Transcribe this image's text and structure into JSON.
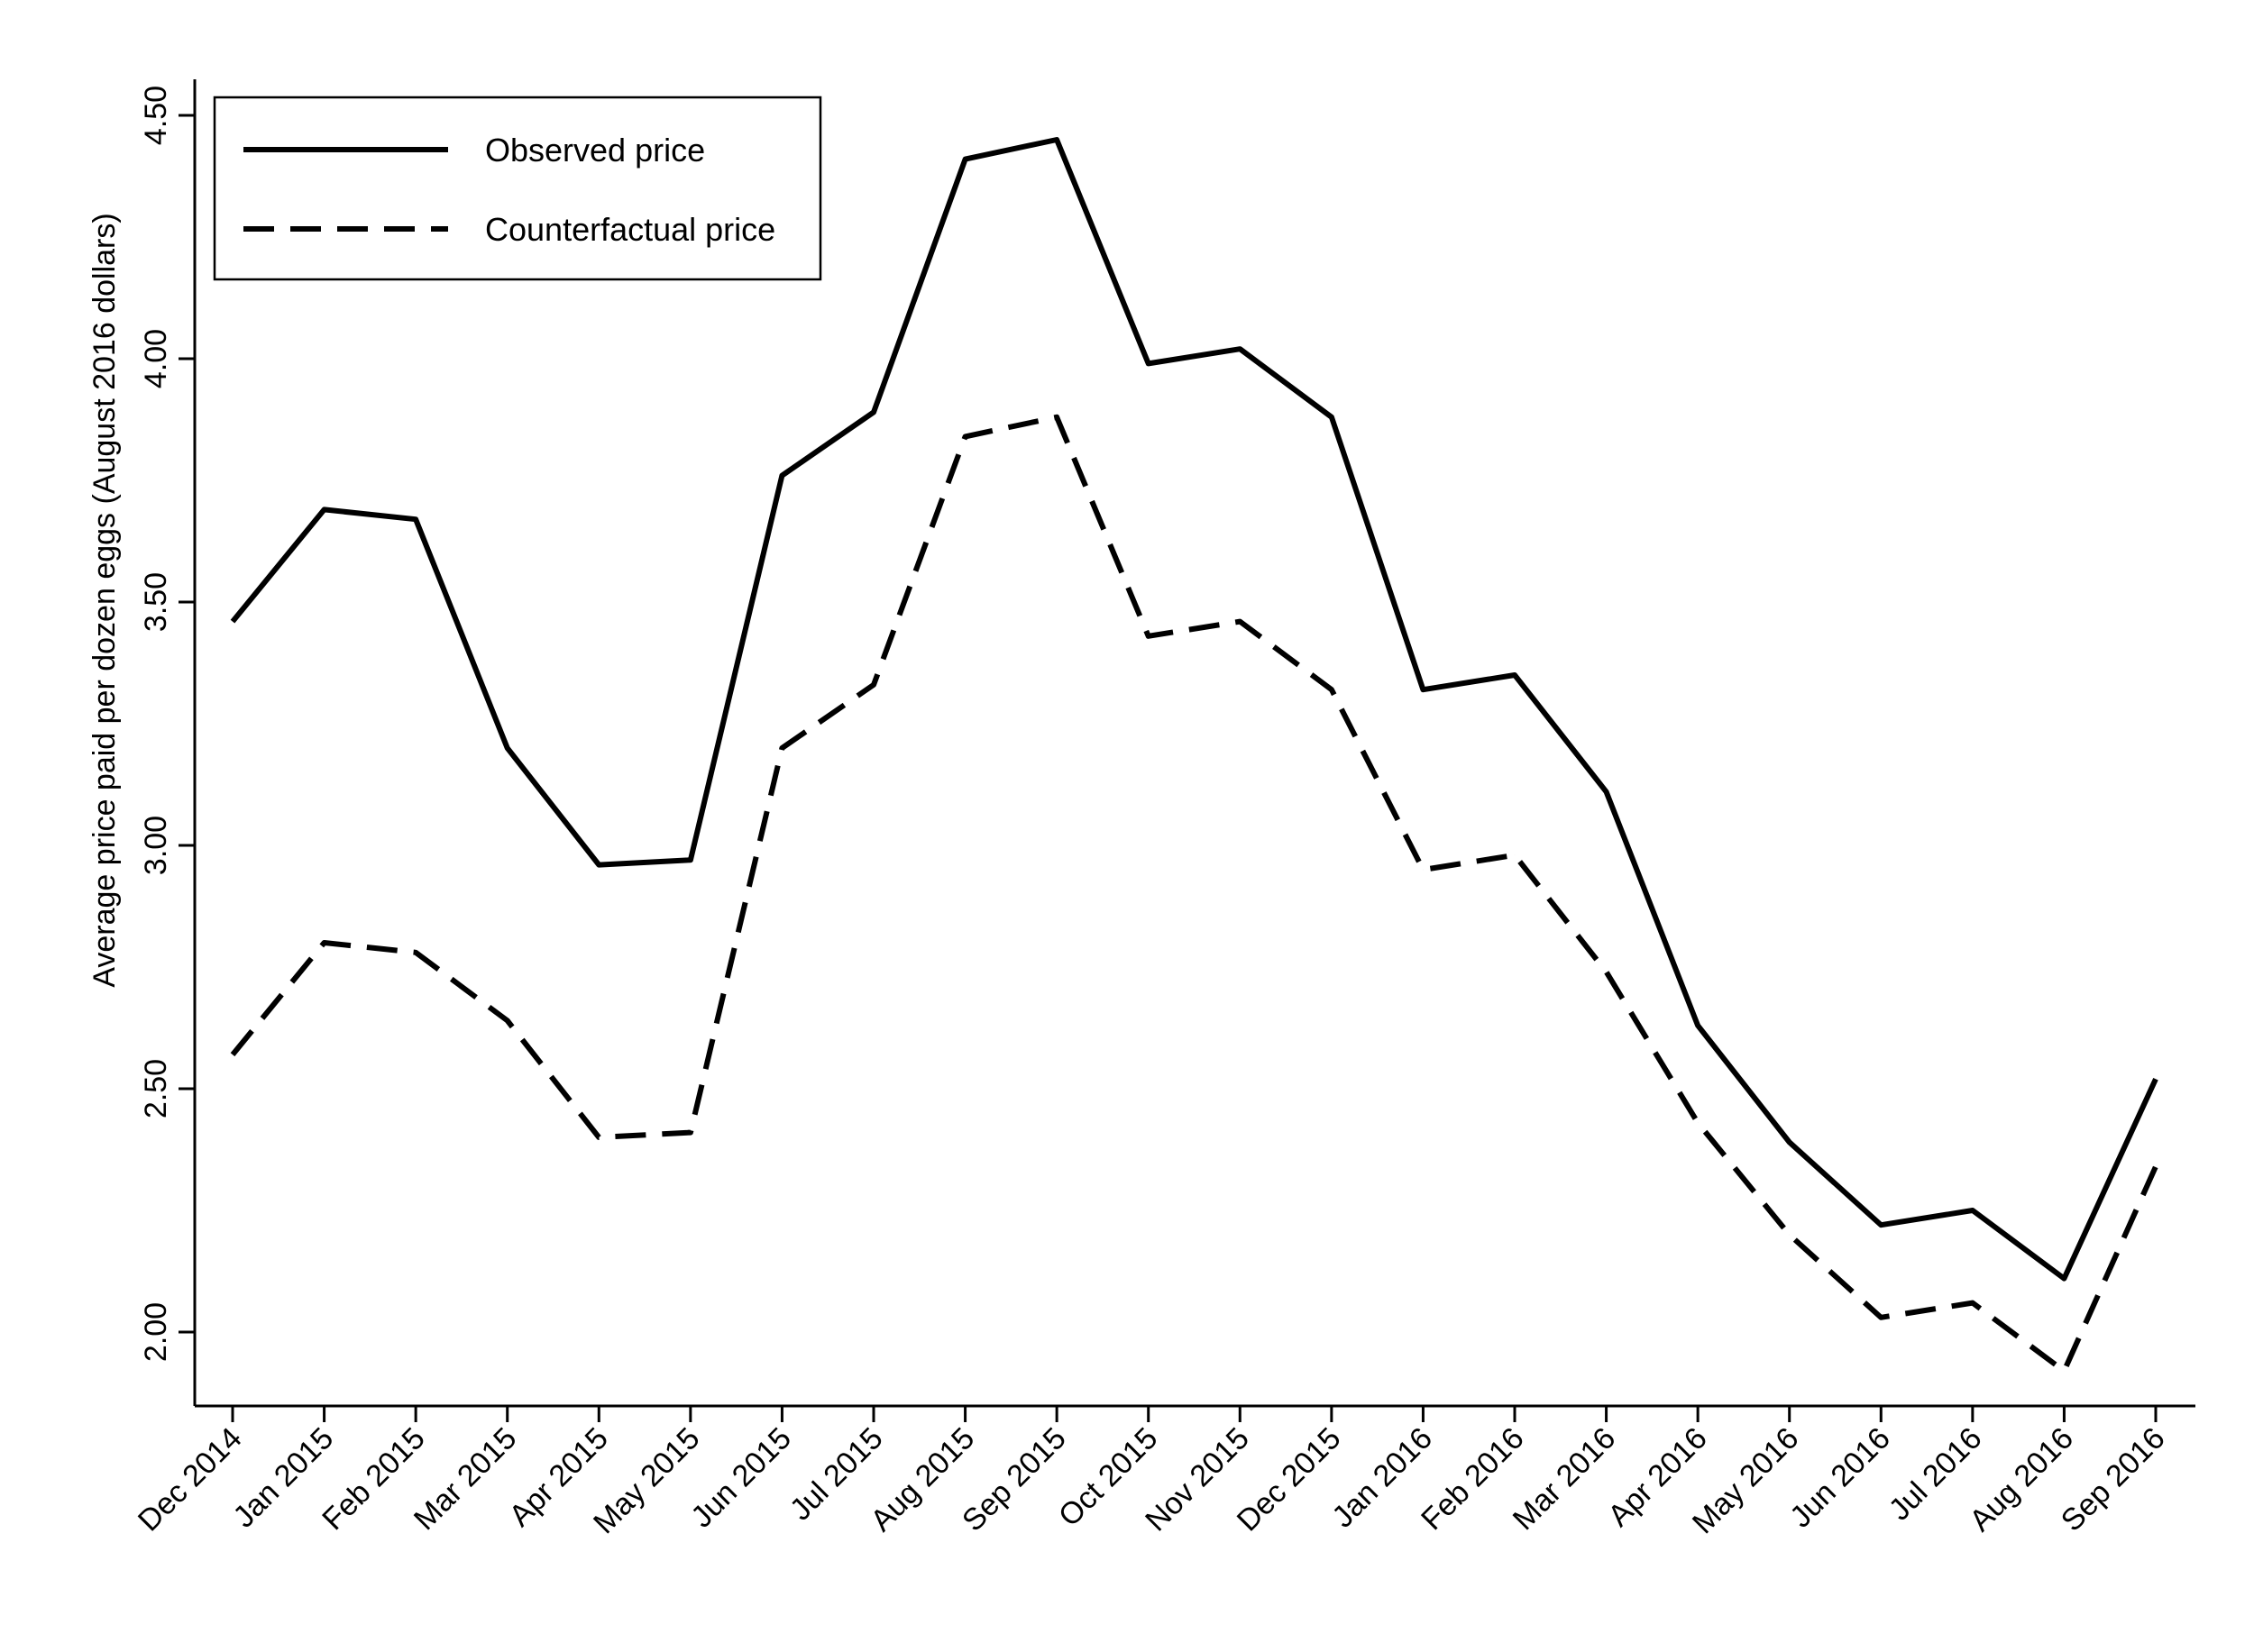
{
  "chart_data": {
    "type": "line",
    "title": "",
    "xlabel": "",
    "ylabel": "Average price paid per dozen eggs (August 2016 dollars)",
    "ylim": [
      1.85,
      4.57
    ],
    "yticks": [
      2.0,
      2.5,
      3.0,
      3.5,
      4.0,
      4.5
    ],
    "ytick_labels": [
      "2.00",
      "2.50",
      "3.00",
      "3.50",
      "4.00",
      "4.50"
    ],
    "grid": false,
    "legend_position": "top-left",
    "categories": [
      "Dec 2014",
      "Jan 2015",
      "Feb 2015",
      "Mar 2015",
      "Apr 2015",
      "May 2015",
      "Jun 2015",
      "Jul 2015",
      "Aug 2015",
      "Sep 2015",
      "Oct 2015",
      "Nov 2015",
      "Dec 2015",
      "Jan 2016",
      "Feb 2016",
      "Mar 2016",
      "Apr 2016",
      "May 2016",
      "Jun 2016",
      "Jul 2016",
      "Aug 2016",
      "Sep 2016"
    ],
    "series": [
      {
        "name": "Observed price",
        "style": "solid",
        "color": "#000000",
        "values": [
          3.46,
          3.69,
          3.67,
          3.2,
          2.96,
          2.97,
          3.76,
          3.89,
          4.41,
          4.45,
          3.99,
          4.02,
          3.88,
          3.32,
          3.35,
          3.11,
          2.63,
          2.39,
          2.22,
          2.25,
          2.11,
          2.52
        ]
      },
      {
        "name": "Counterfactual price",
        "style": "dashed",
        "color": "#000000",
        "values": [
          2.57,
          2.8,
          2.78,
          2.64,
          2.4,
          2.41,
          3.2,
          3.33,
          3.84,
          3.88,
          3.43,
          3.46,
          3.32,
          2.95,
          2.98,
          2.74,
          2.43,
          2.2,
          2.03,
          2.06,
          1.92,
          2.34
        ]
      }
    ]
  }
}
